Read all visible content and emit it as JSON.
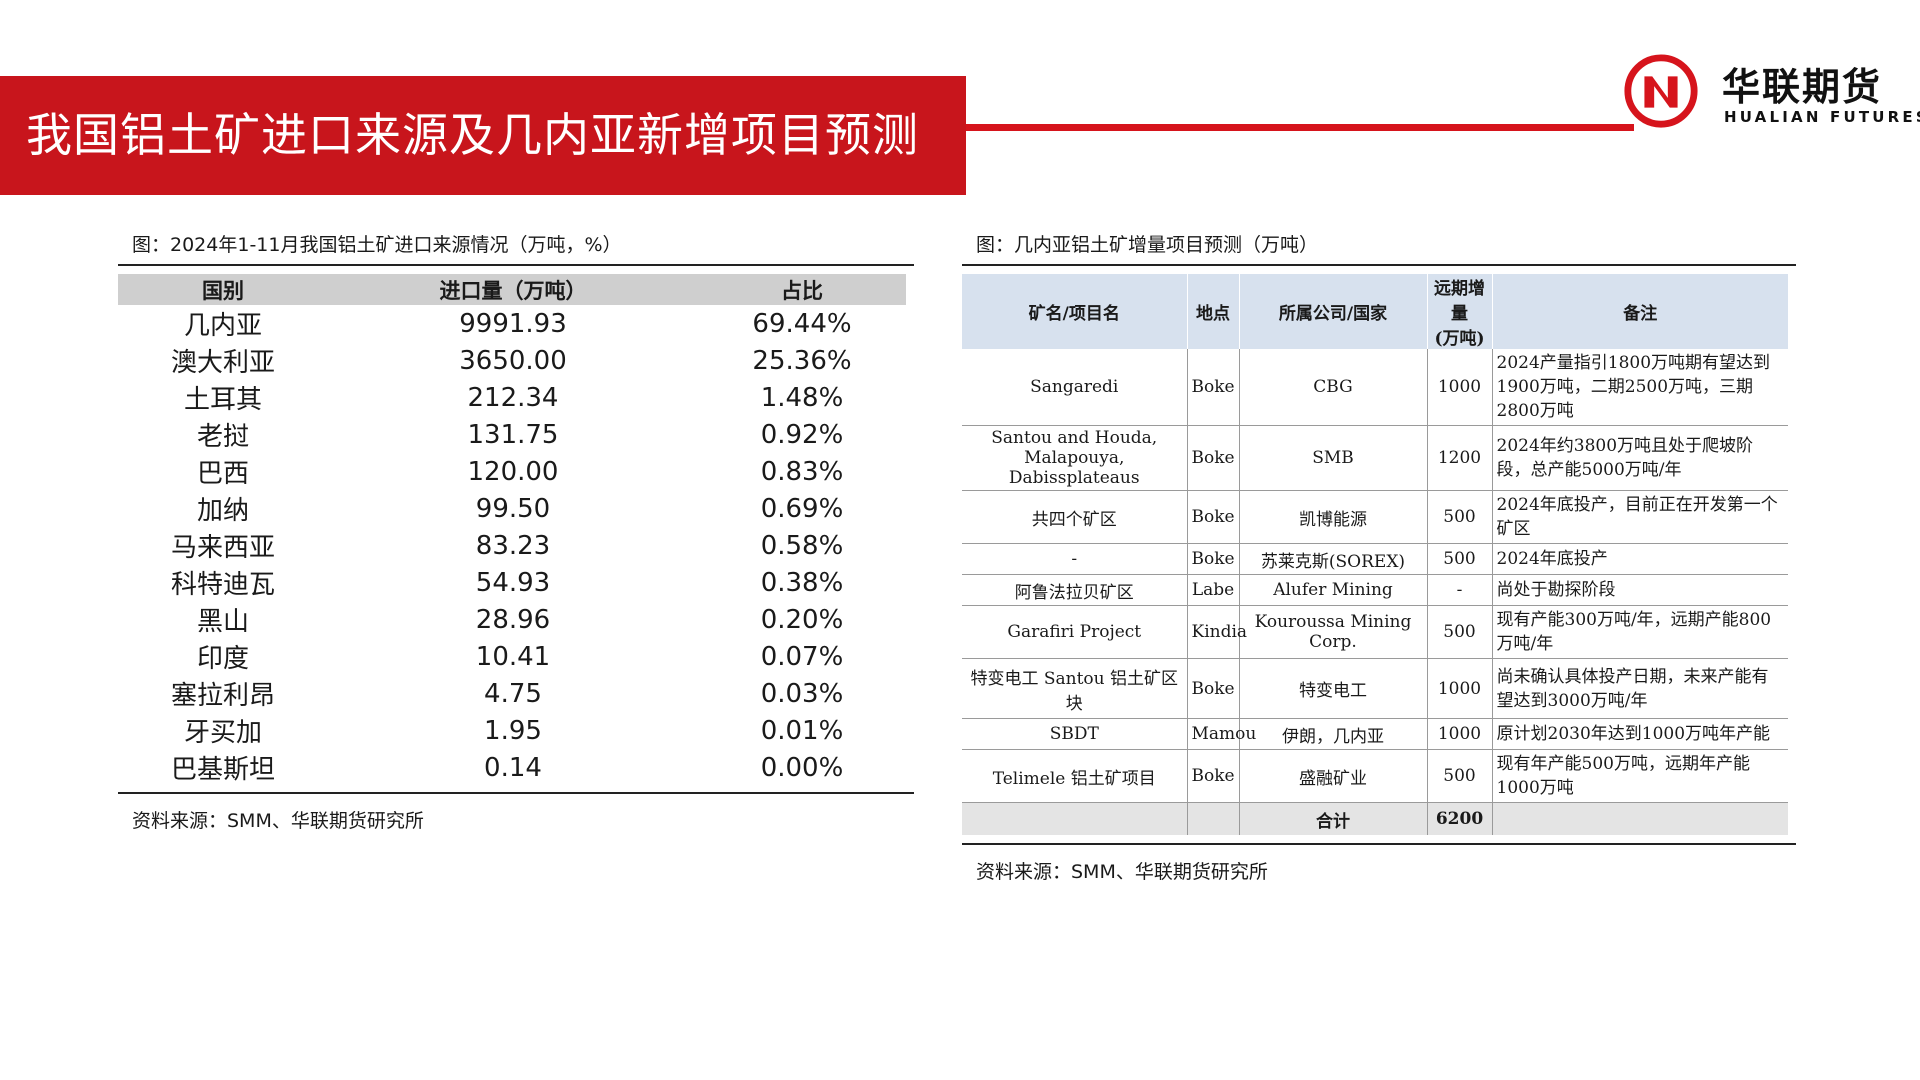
{
  "header": {
    "title": "我国铝土矿进口来源及几内亚新增项目预测",
    "logo_cn": "华联期货",
    "logo_en": "HUALIAN FUTURES"
  },
  "left": {
    "caption": "图：2024年1-11月我国铝土矿进口来源情况（万吨，%）",
    "columns": [
      "国别",
      "进口量（万吨）",
      "占比"
    ],
    "rows": [
      [
        "几内亚",
        "9991.93",
        "69.44%"
      ],
      [
        "澳大利亚",
        "3650.00",
        "25.36%"
      ],
      [
        "土耳其",
        "212.34",
        "1.48%"
      ],
      [
        "老挝",
        "131.75",
        "0.92%"
      ],
      [
        "巴西",
        "120.00",
        "0.83%"
      ],
      [
        "加纳",
        "99.50",
        "0.69%"
      ],
      [
        "马来西亚",
        "83.23",
        "0.58%"
      ],
      [
        "科特迪瓦",
        "54.93",
        "0.38%"
      ],
      [
        "黑山",
        "28.96",
        "0.20%"
      ],
      [
        "印度",
        "10.41",
        "0.07%"
      ],
      [
        "塞拉利昂",
        "4.75",
        "0.03%"
      ],
      [
        "牙买加",
        "1.95",
        "0.01%"
      ],
      [
        "巴基斯坦",
        "0.14",
        "0.00%"
      ]
    ],
    "source": "资料来源：SMM、华联期货研究所"
  },
  "right": {
    "caption": "图：几内亚铝土矿增量项目预测（万吨）",
    "columns": [
      "矿名/项目名",
      "地点",
      "所属公司/国家",
      "远期增量",
      "(万吨)",
      "备注"
    ],
    "rows": [
      [
        "Sangaredi",
        "Boke",
        "CBG",
        "1000",
        "2024产量指引1800万吨期有望达到1900万吨，二期2500万吨，三期2800万吨"
      ],
      [
        "Santou and Houda, Malapouya, Dabissplateaus",
        "Boke",
        "SMB",
        "1200",
        "2024年约3800万吨且处于爬坡阶段，总产能5000万吨/年"
      ],
      [
        "共四个矿区",
        "Boke",
        "凯博能源",
        "500",
        "2024年底投产，目前正在开发第一个矿区"
      ],
      [
        "-",
        "Boke",
        "苏莱克斯(SOREX)",
        "500",
        "2024年底投产"
      ],
      [
        "阿鲁法拉贝矿区",
        "Labe",
        "Alufer Mining",
        "-",
        "尚处于勘探阶段"
      ],
      [
        "Garafiri Project",
        "Kindia",
        "Kouroussa Mining Corp.",
        "500",
        "现有产能300万吨/年，远期产能800万吨/年"
      ],
      [
        "特变电工 Santou 铝土矿区块",
        "Boke",
        "特变电工",
        "1000",
        "尚未确认具体投产日期，未来产能有望达到3000万吨/年"
      ],
      [
        "SBDT",
        "Mamou",
        "伊朗，几内亚",
        "1000",
        "原计划2030年达到1000万吨年产能"
      ],
      [
        "Telimele 铝土矿项目",
        "Boke",
        "盛融矿业",
        "500",
        "现有年产能500万吨，远期年产能1000万吨"
      ]
    ],
    "total_label": "合计",
    "total_value": "6200",
    "source": "资料来源：SMM、华联期货研究所"
  }
}
